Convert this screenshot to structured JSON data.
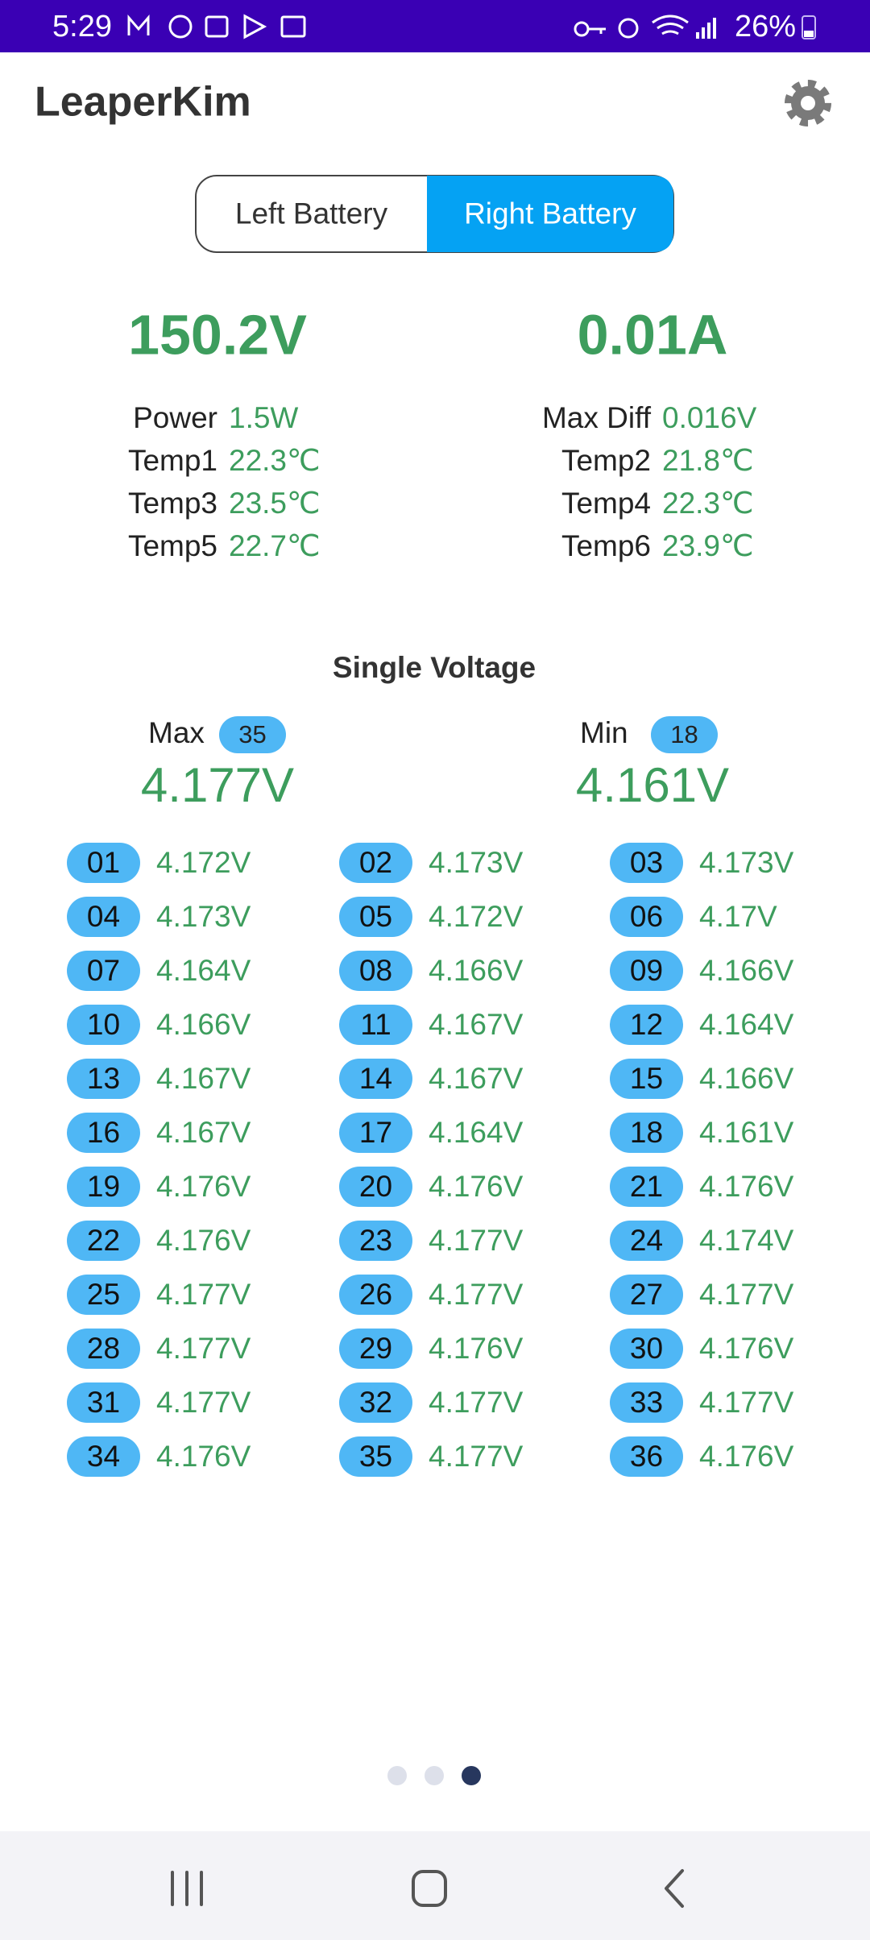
{
  "status_bar": {
    "time": "5:29",
    "battery": "26%"
  },
  "app_bar": {
    "title": "LeaperKim"
  },
  "tabs": [
    {
      "label": "Left Battery"
    },
    {
      "label": "Right Battery",
      "selected": true
    }
  ],
  "summary": {
    "voltage": "150.2V",
    "current": "0.01A"
  },
  "stats": [
    [
      {
        "label": "Power",
        "value": "1.5W"
      },
      {
        "label": "Temp1",
        "value": "22.3℃"
      },
      {
        "label": "Temp3",
        "value": "23.5℃"
      },
      {
        "label": "Temp5",
        "value": "22.7℃"
      }
    ],
    [
      {
        "label": "Max Diff",
        "value": "0.016V"
      },
      {
        "label": "Temp2",
        "value": "21.8℃"
      },
      {
        "label": "Temp4",
        "value": "22.3℃"
      },
      {
        "label": "Temp6",
        "value": "23.9℃"
      }
    ]
  ],
  "single_voltage": {
    "title": "Single Voltage",
    "max": {
      "label": "Max",
      "cell": "35",
      "value": "4.177V"
    },
    "min": {
      "label": "Min",
      "cell": "18",
      "value": "4.161V"
    },
    "cells": [
      {
        "id": "01",
        "value": "4.172V"
      },
      {
        "id": "02",
        "value": "4.173V"
      },
      {
        "id": "03",
        "value": "4.173V"
      },
      {
        "id": "04",
        "value": "4.173V"
      },
      {
        "id": "05",
        "value": "4.172V"
      },
      {
        "id": "06",
        "value": "4.17V"
      },
      {
        "id": "07",
        "value": "4.164V"
      },
      {
        "id": "08",
        "value": "4.166V"
      },
      {
        "id": "09",
        "value": "4.166V"
      },
      {
        "id": "10",
        "value": "4.166V"
      },
      {
        "id": "11",
        "value": "4.167V"
      },
      {
        "id": "12",
        "value": "4.164V"
      },
      {
        "id": "13",
        "value": "4.167V"
      },
      {
        "id": "14",
        "value": "4.167V"
      },
      {
        "id": "15",
        "value": "4.166V"
      },
      {
        "id": "16",
        "value": "4.167V"
      },
      {
        "id": "17",
        "value": "4.164V"
      },
      {
        "id": "18",
        "value": "4.161V"
      },
      {
        "id": "19",
        "value": "4.176V"
      },
      {
        "id": "20",
        "value": "4.176V"
      },
      {
        "id": "21",
        "value": "4.176V"
      },
      {
        "id": "22",
        "value": "4.176V"
      },
      {
        "id": "23",
        "value": "4.177V"
      },
      {
        "id": "24",
        "value": "4.174V"
      },
      {
        "id": "25",
        "value": "4.177V"
      },
      {
        "id": "26",
        "value": "4.177V"
      },
      {
        "id": "27",
        "value": "4.177V"
      },
      {
        "id": "28",
        "value": "4.177V"
      },
      {
        "id": "29",
        "value": "4.176V"
      },
      {
        "id": "30",
        "value": "4.176V"
      },
      {
        "id": "31",
        "value": "4.177V"
      },
      {
        "id": "32",
        "value": "4.177V"
      },
      {
        "id": "33",
        "value": "4.177V"
      },
      {
        "id": "34",
        "value": "4.176V"
      },
      {
        "id": "35",
        "value": "4.177V"
      },
      {
        "id": "36",
        "value": "4.176V"
      }
    ]
  }
}
